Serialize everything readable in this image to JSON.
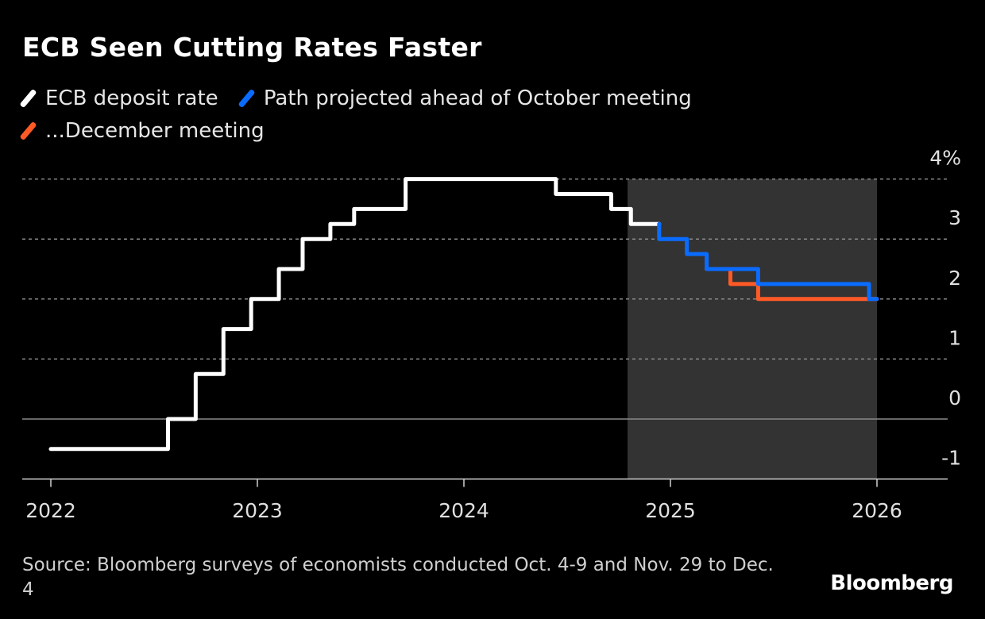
{
  "title": "ECB Seen Cutting Rates Faster",
  "legend": [
    {
      "label": "ECB deposit rate",
      "color": "#ffffff"
    },
    {
      "label": "Path projected ahead of October meeting",
      "color": "#0a6cff"
    },
    {
      "label": "...December meeting",
      "color": "#ff5a26"
    }
  ],
  "source": "Source: Bloomberg surveys of economists conducted Oct. 4-9 and Nov. 29 to Dec. 4",
  "logo": "Bloomberg",
  "chart_data": {
    "type": "line",
    "step": true,
    "title": "ECB Seen Cutting Rates Faster",
    "xlabel": "",
    "ylabel": "",
    "xlim": [
      "2022-01-01",
      "2026-03-15"
    ],
    "ylim": [
      -1,
      4
    ],
    "x_ticks": [
      "2022",
      "2023",
      "2024",
      "2025",
      "2026"
    ],
    "y_ticks": [
      {
        "value": 4,
        "label": "4%"
      },
      {
        "value": 3,
        "label": "3"
      },
      {
        "value": 2,
        "label": "2"
      },
      {
        "value": 1,
        "label": "1"
      },
      {
        "value": 0,
        "label": "0"
      },
      {
        "value": -1,
        "label": "-1"
      }
    ],
    "grid": true,
    "legend_position": "top-left",
    "shaded_range": [
      "2024-10-17",
      "2026-01-01"
    ],
    "shade_color": "#333333",
    "series": [
      {
        "name": "ECB deposit rate",
        "color": "#ffffff",
        "points": [
          [
            "2022-01-01",
            -0.5
          ],
          [
            "2022-07-27",
            0
          ],
          [
            "2022-09-14",
            0.75
          ],
          [
            "2022-11-02",
            1.5
          ],
          [
            "2022-12-21",
            2.0
          ],
          [
            "2023-02-08",
            2.5
          ],
          [
            "2023-03-22",
            3.0
          ],
          [
            "2023-05-10",
            3.25
          ],
          [
            "2023-06-21",
            3.5
          ],
          [
            "2023-09-20",
            4.0
          ],
          [
            "2024-06-12",
            3.75
          ],
          [
            "2024-09-18",
            3.5
          ],
          [
            "2024-10-23",
            3.25
          ],
          [
            "2024-12-12",
            3.25
          ]
        ]
      },
      {
        "name": "...December meeting",
        "color": "#ff5a26",
        "points": [
          [
            "2025-03-06",
            2.5
          ],
          [
            "2025-04-17",
            2.25
          ],
          [
            "2025-06-05",
            2.0
          ],
          [
            "2026-01-01",
            2.0
          ]
        ]
      },
      {
        "name": "Path projected ahead of October meeting",
        "color": "#0a6cff",
        "points": [
          [
            "2024-12-12",
            3.25
          ],
          [
            "2024-12-12",
            3.0
          ],
          [
            "2025-01-30",
            2.75
          ],
          [
            "2025-03-06",
            2.5
          ],
          [
            "2025-06-05",
            2.25
          ],
          [
            "2025-12-18",
            2.0
          ],
          [
            "2026-01-01",
            2.0
          ]
        ]
      }
    ]
  }
}
